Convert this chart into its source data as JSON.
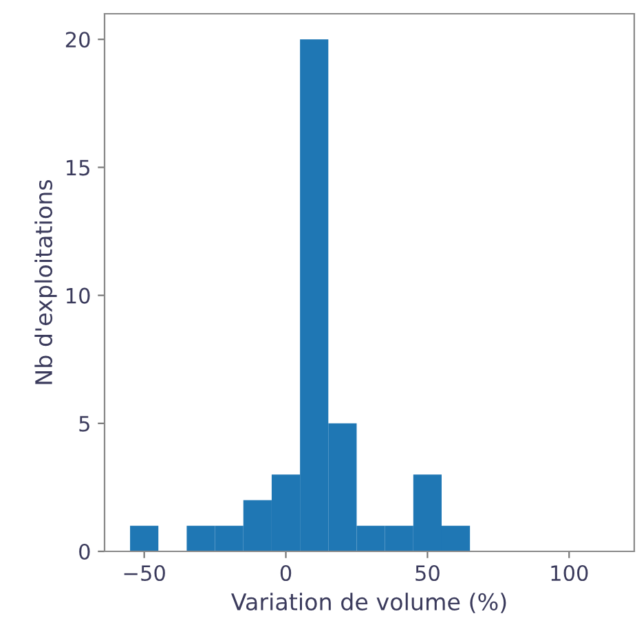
{
  "chart_data": {
    "type": "histogram",
    "xlabel": "Variation de volume (%)",
    "ylabel": "Nb d'exploitations",
    "bins": [
      -55,
      -45,
      -35,
      -25,
      -15,
      -5,
      5,
      15,
      25,
      35,
      45,
      55,
      65
    ],
    "values": [
      1,
      0,
      1,
      1,
      2,
      3,
      20,
      5,
      1,
      1,
      3,
      1
    ],
    "color": "#1f77b4",
    "xlim": [
      -64,
      123
    ],
    "xticks": [
      -50,
      0,
      50,
      100
    ],
    "ylim": [
      0,
      21
    ],
    "yticks": [
      0,
      5,
      10,
      15,
      20
    ],
    "grid": false,
    "legend": false
  }
}
